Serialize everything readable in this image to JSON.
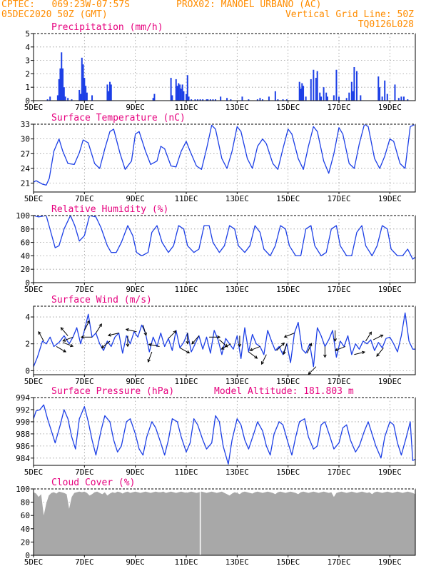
{
  "header": {
    "line1_left": "CPTEC:   069:23W-07:57S",
    "line1_right": "PROX02: MANOEL URBANO (AC)",
    "line2_left": "05DEC2020 50Z (GMT)",
    "line2_right": "Vertical Grid Line: 50Z",
    "line3_right": "TQ0126L028"
  },
  "x_ticks": [
    "5DEC",
    "7DEC",
    "9DEC",
    "11DEC",
    "13DEC",
    "15DEC",
    "17DEC",
    "19DEC"
  ],
  "colors": {
    "header": "#ff8c00",
    "title": "#e6007e",
    "line": "#1c3fe6",
    "bar": "#1c3fe6",
    "cloud": "#a8a8a8",
    "grid": "#999999"
  },
  "chart_data": [
    {
      "id": "precip",
      "type": "bar",
      "title": "Precipitation (mm/h)",
      "ylim": [
        0,
        5
      ],
      "yticks": [
        "0",
        "1",
        "2",
        "3",
        "4",
        "5"
      ],
      "x_unit": "days since 5DEC 00Z",
      "x": [
        0.55,
        0.65,
        0.95,
        1.0,
        1.05,
        1.1,
        1.15,
        1.2,
        1.25,
        1.35,
        1.5,
        1.8,
        1.85,
        1.9,
        1.95,
        2.0,
        2.05,
        2.1,
        2.3,
        2.9,
        2.95,
        3.0,
        3.05,
        4.7,
        4.75,
        5.4,
        5.45,
        5.6,
        5.65,
        5.7,
        5.75,
        5.8,
        5.85,
        5.9,
        6.0,
        6.05,
        6.1,
        6.2,
        6.35,
        6.45,
        6.55,
        6.65,
        6.8,
        6.85,
        6.95,
        7.05,
        7.15,
        7.35,
        7.6,
        7.75,
        8.2,
        8.45,
        8.8,
        8.9,
        9.0,
        9.25,
        9.5,
        9.6,
        9.8,
        9.95,
        10.45,
        10.5,
        10.55,
        10.6,
        10.7,
        10.9,
        11.0,
        11.1,
        11.15,
        11.25,
        11.3,
        11.4,
        11.5,
        11.55,
        11.8,
        11.9,
        12.0,
        12.3,
        12.4,
        12.5,
        12.55,
        12.6,
        12.7,
        12.85,
        13.55,
        13.6,
        13.7,
        13.8,
        13.9,
        14.2,
        14.35,
        14.45,
        14.55,
        14.7
      ],
      "values": [
        0.1,
        0.3,
        0.4,
        1.6,
        2.4,
        3.6,
        2.4,
        1.0,
        0.3,
        0.2,
        0.1,
        0.8,
        0.5,
        3.2,
        2.7,
        1.7,
        1.1,
        0.6,
        0.4,
        1.2,
        0.7,
        1.4,
        1.2,
        0.2,
        0.5,
        1.7,
        0.4,
        1.6,
        1.1,
        1.3,
        1.2,
        0.9,
        1.2,
        0.7,
        0.5,
        1.9,
        0.3,
        0.1,
        0.1,
        0.1,
        0.1,
        0.1,
        0.1,
        0.1,
        0.1,
        0.1,
        0.1,
        0.3,
        0.2,
        0.1,
        0.3,
        0.1,
        0.1,
        0.2,
        0.1,
        0.3,
        0.7,
        0.1,
        0.1,
        0.1,
        1.4,
        0.9,
        1.3,
        1.1,
        0.3,
        1.6,
        2.3,
        1.7,
        2.2,
        0.6,
        0.3,
        1.0,
        0.6,
        0.3,
        0.4,
        2.3,
        0.3,
        0.2,
        0.6,
        1.4,
        0.7,
        2.5,
        2.2,
        0.4,
        1.8,
        1.0,
        0.3,
        1.5,
        0.5,
        1.2,
        0.2,
        0.3,
        0.3,
        0.1
      ]
    },
    {
      "id": "temp",
      "type": "line",
      "title": "Surface Temperature (nC)",
      "ylim": [
        19.2,
        33
      ],
      "yticks": [
        "21",
        "24",
        "27",
        "30",
        "33"
      ],
      "x_unit": "days since 5DEC 00Z",
      "x": [
        0.0,
        0.1,
        0.35,
        0.5,
        0.62,
        0.8,
        1.0,
        1.15,
        1.35,
        1.6,
        1.8,
        1.95,
        2.15,
        2.4,
        2.6,
        2.8,
        3.0,
        3.15,
        3.4,
        3.6,
        3.85,
        4.0,
        4.15,
        4.4,
        4.6,
        4.85,
        5.0,
        5.15,
        5.4,
        5.6,
        5.8,
        6.0,
        6.15,
        6.4,
        6.6,
        6.8,
        7.0,
        7.15,
        7.4,
        7.6,
        7.8,
        8.0,
        8.15,
        8.4,
        8.6,
        8.8,
        9.0,
        9.15,
        9.4,
        9.6,
        9.8,
        10.0,
        10.15,
        10.4,
        10.6,
        10.8,
        11.0,
        11.15,
        11.4,
        11.6,
        11.8,
        12.0,
        12.15,
        12.4,
        12.6,
        12.8,
        13.0,
        13.15,
        13.4,
        13.6,
        13.8,
        14.0,
        14.15,
        14.4,
        14.6,
        14.8,
        15.0
      ],
      "y": [
        21.2,
        21.5,
        20.8,
        20.6,
        22.0,
        27.5,
        30.0,
        27.5,
        25.0,
        24.8,
        27.2,
        29.8,
        29.2,
        25.0,
        24.0,
        28.0,
        31.5,
        32.0,
        27.0,
        23.8,
        25.5,
        31.0,
        31.5,
        27.5,
        24.8,
        25.5,
        28.5,
        28.0,
        24.5,
        24.3,
        27.5,
        29.5,
        27.5,
        24.5,
        23.8,
        28.0,
        32.8,
        32.0,
        26.0,
        24.0,
        27.5,
        32.5,
        31.5,
        26.0,
        24.0,
        28.5,
        30.0,
        29.0,
        25.0,
        23.8,
        28.0,
        32.0,
        31.0,
        26.0,
        23.8,
        28.5,
        32.5,
        31.5,
        25.5,
        23.0,
        27.0,
        32.3,
        31.0,
        25.0,
        24.0,
        29.0,
        33.0,
        32.5,
        26.0,
        24.0,
        26.5,
        30.0,
        29.5,
        25.0,
        24.0,
        32.5,
        33.0
      ]
    },
    {
      "id": "rh",
      "type": "line",
      "title": "Relative Humidity (%)",
      "ylim": [
        0,
        100
      ],
      "yticks": [
        "0",
        "20",
        "40",
        "60",
        "80",
        "100"
      ],
      "x_unit": "days since 5DEC 00Z",
      "x": [
        0.0,
        0.2,
        0.5,
        0.68,
        0.85,
        1.0,
        1.2,
        1.45,
        1.62,
        1.8,
        2.0,
        2.2,
        2.45,
        2.65,
        2.9,
        3.05,
        3.25,
        3.45,
        3.7,
        3.9,
        4.05,
        4.25,
        4.5,
        4.65,
        4.85,
        5.05,
        5.3,
        5.5,
        5.7,
        5.9,
        6.05,
        6.3,
        6.5,
        6.7,
        6.9,
        7.05,
        7.3,
        7.5,
        7.7,
        7.9,
        8.05,
        8.3,
        8.5,
        8.7,
        8.9,
        9.05,
        9.3,
        9.5,
        9.7,
        9.9,
        10.05,
        10.3,
        10.5,
        10.7,
        10.9,
        11.05,
        11.3,
        11.5,
        11.7,
        11.9,
        12.05,
        12.3,
        12.5,
        12.7,
        12.9,
        13.05,
        13.3,
        13.5,
        13.7,
        13.9,
        14.05,
        14.3,
        14.5,
        14.7,
        14.9,
        15.0
      ],
      "y": [
        100,
        98,
        100,
        75,
        52,
        55,
        80,
        100,
        85,
        62,
        70,
        100,
        98,
        82,
        55,
        45,
        45,
        60,
        85,
        70,
        45,
        40,
        45,
        75,
        85,
        60,
        45,
        55,
        85,
        80,
        55,
        45,
        50,
        85,
        85,
        60,
        45,
        55,
        85,
        80,
        55,
        45,
        55,
        85,
        75,
        50,
        40,
        55,
        85,
        80,
        55,
        40,
        40,
        80,
        85,
        55,
        40,
        45,
        80,
        85,
        55,
        40,
        40,
        75,
        85,
        55,
        40,
        55,
        85,
        80,
        50,
        40,
        40,
        50,
        35,
        38
      ]
    },
    {
      "id": "wind",
      "type": "line",
      "title": "Surface Wind (m/s)",
      "ylim": [
        -0.3,
        4.8
      ],
      "yticks": [
        "0",
        "2",
        "4"
      ],
      "x_unit": "days since 5DEC 00Z",
      "x": [
        0.0,
        0.15,
        0.35,
        0.5,
        0.65,
        0.8,
        1.0,
        1.2,
        1.4,
        1.55,
        1.7,
        1.85,
        2.0,
        2.15,
        2.3,
        2.45,
        2.6,
        2.75,
        2.9,
        3.05,
        3.2,
        3.35,
        3.5,
        3.65,
        3.8,
        3.95,
        4.1,
        4.25,
        4.4,
        4.55,
        4.7,
        4.85,
        5.0,
        5.15,
        5.3,
        5.45,
        5.6,
        5.75,
        5.9,
        6.05,
        6.2,
        6.35,
        6.5,
        6.65,
        6.8,
        6.95,
        7.1,
        7.25,
        7.4,
        7.55,
        7.7,
        7.85,
        8.0,
        8.15,
        8.3,
        8.45,
        8.6,
        8.75,
        8.9,
        9.05,
        9.2,
        9.35,
        9.5,
        9.65,
        9.8,
        9.95,
        10.1,
        10.25,
        10.4,
        10.55,
        10.7,
        10.85,
        11.0,
        11.15,
        11.3,
        11.45,
        11.6,
        11.75,
        11.9,
        12.05,
        12.2,
        12.35,
        12.5,
        12.65,
        12.8,
        12.95,
        13.1,
        13.25,
        13.4,
        13.55,
        13.7,
        13.85,
        14.0,
        14.15,
        14.3,
        14.45,
        14.6,
        14.75,
        14.9,
        15.0
      ],
      "y": [
        0.3,
        1.0,
        2.2,
        2.0,
        2.5,
        1.8,
        2.1,
        2.6,
        2.0,
        2.5,
        3.2,
        2.0,
        3.0,
        4.2,
        2.5,
        2.8,
        2.0,
        1.5,
        2.2,
        1.8,
        2.5,
        2.8,
        1.3,
        2.6,
        2.0,
        2.9,
        2.5,
        3.4,
        2.8,
        1.4,
        2.5,
        1.8,
        2.8,
        1.8,
        2.4,
        1.5,
        3.0,
        1.7,
        2.1,
        2.8,
        1.4,
        2.0,
        2.6,
        1.6,
        2.5,
        1.3,
        3.0,
        2.3,
        1.2,
        2.4,
        2.0,
        1.6,
        2.6,
        0.9,
        3.2,
        1.4,
        2.7,
        2.0,
        1.8,
        1.2,
        3.0,
        2.2,
        1.5,
        1.8,
        1.2,
        2.0,
        0.6,
        2.8,
        3.6,
        1.6,
        1.3,
        2.0,
        0.3,
        3.2,
        2.6,
        1.8,
        2.3,
        3.0,
        1.0,
        2.2,
        1.8,
        2.6,
        1.2,
        2.0,
        1.6,
        2.2,
        2.0,
        2.3,
        1.5,
        2.1,
        1.7,
        2.4,
        2.5,
        2.0,
        1.4,
        2.6,
        4.3,
        2.2,
        1.6,
        1.6
      ],
      "arrow_x": [
        0.4,
        0.9,
        1.15,
        1.35,
        1.55,
        2.0,
        2.3,
        2.45,
        3.0,
        3.35,
        3.7,
        4.05,
        4.3,
        4.65,
        4.95,
        5.3,
        5.75,
        6.05,
        6.5,
        6.9,
        7.3,
        7.75,
        8.1,
        8.45,
        8.9,
        9.15,
        9.55,
        9.95,
        10.25,
        10.75,
        11.1,
        11.45,
        11.85,
        12.25,
        12.6,
        13.05,
        13.35,
        13.75
      ],
      "arrow_u": [
        -0.6,
        1.2,
        0.8,
        -0.6,
        -1.3,
        0.5,
        -1.0,
        0.5,
        -0.6,
        -1.3,
        0.0,
        -1.3,
        0.3,
        -0.3,
        -0.5,
        0.6,
        1.1,
        0.0,
        -0.6,
        1.2,
        0.8,
        -0.7,
        0.0,
        0.8,
        -1.0,
        -0.5,
        0.7,
        -0.3,
        -1.0,
        0.4,
        -0.6,
        0.0,
        0.0,
        -1.0,
        1.2,
        0.5,
        1.0,
        -0.8
      ],
      "arrow_v": [
        1.1,
        -0.7,
        -0.3,
        0.7,
        -0.5,
        1.0,
        0.0,
        0.8,
        -0.5,
        -0.3,
        -1.2,
        0.3,
        -1.0,
        -0.8,
        0.1,
        0.6,
        -0.6,
        -1.0,
        -0.7,
        0.0,
        -0.7,
        -0.4,
        -1.0,
        -0.6,
        -0.4,
        -1.0,
        0.7,
        -1.0,
        -0.4,
        0.9,
        -0.6,
        -1.0,
        -1.1,
        -0.4,
        0.3,
        0.8,
        0.5,
        -1.0
      ]
    },
    {
      "id": "pres",
      "type": "line",
      "title": "Surface Pressure (hPa)",
      "subtitle": "Model Altitude: 181.803 m",
      "ylim": [
        982.8,
        994
      ],
      "yticks": [
        "984",
        "986",
        "988",
        "990",
        "992",
        "994"
      ],
      "x_unit": "days since 5DEC 00Z",
      "x": [
        0.0,
        0.1,
        0.25,
        0.4,
        0.55,
        0.7,
        0.85,
        1.05,
        1.2,
        1.35,
        1.5,
        1.65,
        1.8,
        2.0,
        2.15,
        2.3,
        2.45,
        2.65,
        2.8,
        3.0,
        3.15,
        3.3,
        3.45,
        3.65,
        3.8,
        4.0,
        4.15,
        4.3,
        4.45,
        4.65,
        4.8,
        5.0,
        5.15,
        5.3,
        5.45,
        5.65,
        5.8,
        6.0,
        6.15,
        6.3,
        6.45,
        6.65,
        6.8,
        7.0,
        7.15,
        7.3,
        7.45,
        7.65,
        7.8,
        8.0,
        8.15,
        8.3,
        8.45,
        8.65,
        8.8,
        9.0,
        9.15,
        9.3,
        9.45,
        9.65,
        9.8,
        10.0,
        10.15,
        10.3,
        10.45,
        10.65,
        10.8,
        11.0,
        11.15,
        11.3,
        11.45,
        11.65,
        11.8,
        12.0,
        12.15,
        12.3,
        12.45,
        12.65,
        12.8,
        13.0,
        13.15,
        13.3,
        13.45,
        13.65,
        13.8,
        14.0,
        14.15,
        14.3,
        14.45,
        14.65,
        14.8,
        14.9,
        15.0
      ],
      "y": [
        990.5,
        991.8,
        992.0,
        992.8,
        990.5,
        988.5,
        986.5,
        989.5,
        992.0,
        990.5,
        987.5,
        985.5,
        990.5,
        992.5,
        990.0,
        987.0,
        984.5,
        988.5,
        991.0,
        990.0,
        987.0,
        985.0,
        986.0,
        990.0,
        990.5,
        988.0,
        985.5,
        984.5,
        987.5,
        990.0,
        989.0,
        986.5,
        984.5,
        987.0,
        990.5,
        990.0,
        987.5,
        985.0,
        986.5,
        990.5,
        989.5,
        987.0,
        985.5,
        986.5,
        991.0,
        990.0,
        986.0,
        983.0,
        987.0,
        990.5,
        989.5,
        987.0,
        985.5,
        988.0,
        990.0,
        988.5,
        986.0,
        984.5,
        988.0,
        990.0,
        989.5,
        986.5,
        984.5,
        987.5,
        990.0,
        990.5,
        987.5,
        985.5,
        986.0,
        989.5,
        990.0,
        987.5,
        985.5,
        986.5,
        989.0,
        989.5,
        987.0,
        985.0,
        986.0,
        988.5,
        990.0,
        988.0,
        986.0,
        984.0,
        987.5,
        990.0,
        989.5,
        986.5,
        984.5,
        987.5,
        990.0,
        983.6,
        983.8
      ]
    },
    {
      "id": "cloud",
      "type": "area",
      "title": "Cloud Cover (%)",
      "ylim": [
        0,
        100
      ],
      "yticks": [
        "0",
        "20",
        "40",
        "60",
        "80",
        "100"
      ],
      "x_unit": "days since 5DEC 00Z",
      "x": [
        0.0,
        0.1,
        0.2,
        0.3,
        0.4,
        0.5,
        0.6,
        0.7,
        0.8,
        0.9,
        1.0,
        1.1,
        1.2,
        1.3,
        1.4,
        1.5,
        1.6,
        1.7,
        1.8,
        1.9,
        2.0,
        2.1,
        2.2,
        2.3,
        2.4,
        2.5,
        2.6,
        2.7,
        2.8,
        2.9,
        3.0,
        3.1,
        3.2,
        3.3,
        3.4,
        3.5,
        3.6,
        3.7,
        3.8,
        3.9,
        4.0,
        4.1,
        4.2,
        4.3,
        4.4,
        4.5,
        4.6,
        4.7,
        4.8,
        4.9,
        5.0,
        5.1,
        5.2,
        5.3,
        5.4,
        5.5,
        5.6,
        5.7,
        5.8,
        5.9,
        6.0,
        6.1,
        6.2,
        6.3,
        6.4,
        6.5,
        6.6,
        6.7,
        6.8,
        6.9,
        7.0,
        7.1,
        7.2,
        7.3,
        7.4,
        7.5,
        7.6,
        7.7,
        7.8,
        7.9,
        8.0,
        8.1,
        8.2,
        8.3,
        8.4,
        8.5,
        8.6,
        8.7,
        8.8,
        8.9,
        9.0,
        9.1,
        9.2,
        9.3,
        9.4,
        9.5,
        9.6,
        9.7,
        9.8,
        9.9,
        10.0,
        10.1,
        10.2,
        10.3,
        10.4,
        10.5,
        10.6,
        10.7,
        10.8,
        10.9,
        11.0,
        11.1,
        11.2,
        11.3,
        11.4,
        11.5,
        11.6,
        11.7,
        11.8,
        11.9,
        12.0,
        12.1,
        12.2,
        12.3,
        12.4,
        12.5,
        12.6,
        12.7,
        12.8,
        12.9,
        13.0,
        13.1,
        13.2,
        13.3,
        13.4,
        13.5,
        13.6,
        13.7,
        13.8,
        13.9,
        14.0,
        14.1,
        14.2,
        14.3,
        14.4,
        14.5,
        14.6,
        14.7,
        14.8,
        14.9,
        15.0
      ],
      "y": [
        95,
        93,
        88,
        92,
        60,
        78,
        90,
        94,
        95,
        93,
        96,
        95,
        94,
        92,
        70,
        88,
        94,
        95,
        96,
        95,
        96,
        94,
        90,
        92,
        95,
        96,
        94,
        92,
        95,
        90,
        93,
        95,
        94,
        96,
        95,
        93,
        95,
        96,
        94,
        95,
        96,
        95,
        94,
        95,
        96,
        95,
        94,
        95,
        96,
        95,
        95,
        96,
        94,
        95,
        96,
        95,
        94,
        95,
        96,
        95,
        94,
        95,
        96,
        95,
        94,
        95,
        96,
        95,
        94,
        95,
        96,
        95,
        94,
        95,
        96,
        94,
        92,
        90,
        93,
        95,
        94,
        92,
        95,
        96,
        95,
        94,
        93,
        95,
        96,
        95,
        94,
        95,
        96,
        95,
        94,
        92,
        95,
        96,
        95,
        94,
        95,
        96,
        95,
        94,
        92,
        95,
        96,
        95,
        94,
        95,
        96,
        95,
        94,
        95,
        96,
        95,
        94,
        95,
        88,
        94,
        95,
        96,
        95,
        94,
        95,
        96,
        95,
        94,
        95,
        96,
        95,
        94,
        95,
        92,
        95,
        96,
        95,
        94,
        95,
        96,
        95,
        94,
        95,
        96,
        95,
        94,
        95,
        96,
        95,
        94,
        92
      ]
    }
  ]
}
